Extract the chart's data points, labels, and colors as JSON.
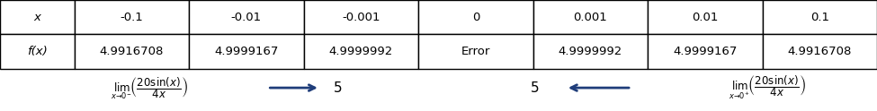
{
  "col_headers": [
    "x",
    "-0.1",
    "-0.01",
    "-0.001",
    "0",
    "0.001",
    "0.01",
    "0.1"
  ],
  "row1_label": "x",
  "row2_label": "f(x)",
  "row2_values": [
    "4.9916708",
    "4.9999167",
    "4.9999992",
    "Error",
    "4.9999992",
    "4.9999167",
    "4.9916708"
  ],
  "row1_values": [
    "-0.1",
    "-0.01",
    "-0.001",
    "0",
    "0.001",
    "0.01",
    "0.1"
  ],
  "table_bg": "#ffffff",
  "border_color": "#000000",
  "text_color": "#000000",
  "arrow_color": "#1f3d7a",
  "limit_left_text": "lim",
  "limit_left_sub": "x→0⁻",
  "limit_left_expr": "\\left(\\frac{20\\sin(x)}{4x}\\right)",
  "limit_right_text": "lim",
  "limit_right_sub": "x→0⁺",
  "limit_right_expr": "\\left(\\frac{20\\sin(x)}{4x}\\right)",
  "five_left": "5",
  "five_right": "5",
  "figsize": [
    9.75,
    1.24
  ],
  "dpi": 100
}
